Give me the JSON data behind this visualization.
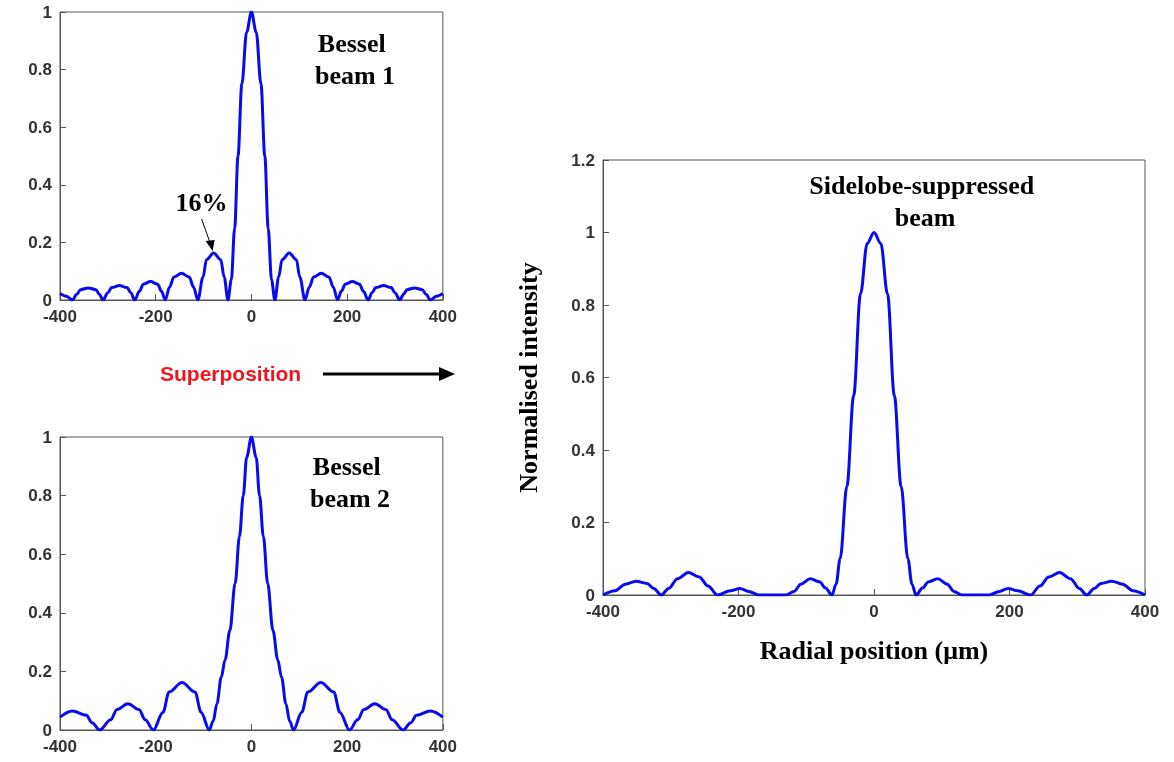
{
  "chart_data": [
    {
      "type": "line",
      "title": "Bessel beam 1",
      "color": "#0a0af0",
      "xlim": [
        -400,
        400
      ],
      "xticks": [
        -400,
        -200,
        0,
        200,
        400
      ],
      "ylim": [
        0,
        1
      ],
      "yticks": [
        0,
        0.2,
        0.4,
        0.6,
        0.8,
        1
      ],
      "x": [
        -400,
        -387,
        -374,
        -365,
        -357,
        -341,
        -325,
        -318,
        -310,
        -300,
        -292,
        -276,
        -260,
        -252,
        -244,
        -234,
        -226,
        -211,
        -196,
        -188,
        -180,
        -171,
        -162,
        -146,
        -130,
        -121,
        -112,
        -101,
        -94,
        -79,
        -64,
        -57,
        -49,
        -42,
        -35,
        -28,
        -20,
        -10,
        0,
        10,
        20,
        28,
        35,
        42,
        49,
        57,
        64,
        79,
        94,
        101,
        112,
        121,
        130,
        146,
        162,
        171,
        180,
        188,
        196,
        211,
        226,
        234,
        244,
        252,
        260,
        276,
        292,
        300,
        310,
        318,
        325,
        341,
        357,
        365,
        374,
        387,
        400
      ],
      "values": [
        0.023,
        0.013,
        0,
        0.02,
        0.036,
        0.042,
        0.036,
        0.02,
        0,
        0.025,
        0.043,
        0.05,
        0.043,
        0.025,
        0,
        0.03,
        0.055,
        0.064,
        0.055,
        0.03,
        0,
        0.045,
        0.08,
        0.093,
        0.08,
        0.045,
        0,
        0.08,
        0.14,
        0.163,
        0.14,
        0.08,
        0,
        0.07,
        0.25,
        0.5,
        0.75,
        0.93,
        1,
        0.93,
        0.75,
        0.5,
        0.25,
        0.07,
        0,
        0.08,
        0.14,
        0.163,
        0.14,
        0.08,
        0,
        0.045,
        0.08,
        0.093,
        0.08,
        0.045,
        0,
        0.03,
        0.055,
        0.064,
        0.055,
        0.03,
        0,
        0.025,
        0.043,
        0.05,
        0.043,
        0.025,
        0,
        0.02,
        0.036,
        0.042,
        0.036,
        0.02,
        0,
        0.013,
        0.023
      ],
      "annotations": [
        {
          "text": "16%",
          "x": -79,
          "y": 0.163
        },
        "Superposition"
      ]
    },
    {
      "type": "line",
      "title": "Bessel beam 2",
      "color": "#0a0af0",
      "xlim": [
        -400,
        400
      ],
      "xticks": [
        -400,
        -200,
        0,
        200,
        400
      ],
      "ylim": [
        0,
        1
      ],
      "yticks": [
        0,
        0.2,
        0.4,
        0.6,
        0.8,
        1
      ],
      "x": [
        -400,
        -374,
        -345,
        -333,
        -317,
        -294,
        -281,
        -258,
        -235,
        -222,
        -205,
        -185,
        -172,
        -145,
        -118,
        -105,
        -88,
        -80,
        -72,
        -63,
        -55,
        -45,
        -34,
        -25,
        -17,
        -10,
        0,
        10,
        17,
        25,
        34,
        45,
        55,
        63,
        72,
        80,
        88,
        105,
        118,
        145,
        172,
        185,
        205,
        222,
        235,
        258,
        281,
        294,
        317,
        333,
        345,
        374,
        400
      ],
      "values": [
        0.044,
        0.065,
        0.05,
        0.025,
        0,
        0.035,
        0.07,
        0.09,
        0.07,
        0.035,
        0,
        0.06,
        0.13,
        0.162,
        0.13,
        0.06,
        0,
        0.03,
        0.09,
        0.18,
        0.24,
        0.34,
        0.5,
        0.66,
        0.8,
        0.93,
        1,
        0.93,
        0.8,
        0.66,
        0.5,
        0.34,
        0.24,
        0.18,
        0.09,
        0.03,
        0,
        0.06,
        0.13,
        0.162,
        0.13,
        0.06,
        0,
        0.035,
        0.07,
        0.09,
        0.07,
        0.035,
        0,
        0.025,
        0.05,
        0.065,
        0.044
      ]
    },
    {
      "type": "line",
      "title": "Sidelobe-suppressed beam",
      "xlabel": "Radial position (μm)",
      "ylabel": "Normalised intensity",
      "color": "#0a0af0",
      "xlim": [
        -400,
        400
      ],
      "xticks": [
        -400,
        -200,
        0,
        200,
        400
      ],
      "ylim": [
        0,
        1.2
      ],
      "yticks": [
        0,
        0.2,
        0.4,
        0.6,
        0.8,
        1,
        1.2
      ],
      "x": [
        -400,
        -382,
        -367,
        -351,
        -335,
        -325,
        -314,
        -303,
        -290,
        -274,
        -258,
        -245,
        -231,
        -212,
        -198,
        -185,
        -170,
        -130,
        -118,
        -108,
        -94,
        -80,
        -72,
        -62,
        -56,
        -50,
        -40,
        -30,
        -20,
        -10,
        0,
        10,
        20,
        30,
        40,
        50,
        56,
        62,
        72,
        80,
        94,
        108,
        118,
        130,
        170,
        185,
        198,
        212,
        231,
        245,
        258,
        274,
        290,
        303,
        314,
        325,
        335,
        351,
        367,
        382,
        400
      ],
      "values": [
        0,
        0.012,
        0.03,
        0.038,
        0.032,
        0.018,
        0,
        0.018,
        0.045,
        0.062,
        0.05,
        0.025,
        0,
        0.012,
        0.018,
        0.01,
        0,
        0,
        0.01,
        0.03,
        0.045,
        0.036,
        0.02,
        0,
        0.03,
        0.1,
        0.3,
        0.55,
        0.83,
        0.97,
        1,
        0.97,
        0.83,
        0.55,
        0.3,
        0.1,
        0.03,
        0,
        0.02,
        0.036,
        0.045,
        0.03,
        0.01,
        0,
        0,
        0.01,
        0.018,
        0.012,
        0,
        0.025,
        0.05,
        0.062,
        0.045,
        0.018,
        0,
        0.018,
        0.032,
        0.038,
        0.03,
        0.012,
        0
      ]
    }
  ]
}
